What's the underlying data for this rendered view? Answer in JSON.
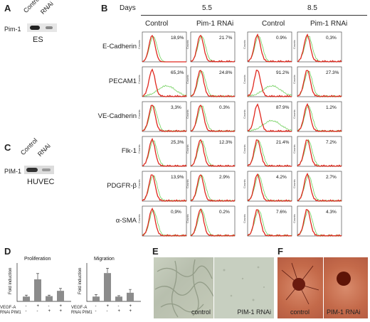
{
  "panel_a": {
    "label": "A",
    "lanes": [
      "Control",
      "RNAi"
    ],
    "protein": "Pim-1",
    "cell": "ES"
  },
  "panel_b": {
    "label": "B",
    "days_label": "Days",
    "days": [
      "5.5",
      "8.5"
    ],
    "groups": [
      "Control",
      "Pim-1 RNAi",
      "Control",
      "Pim-1 RNAi"
    ],
    "rows": [
      {
        "marker": "E-Cadherin",
        "pcts": [
          "18,9%",
          "21.7%",
          "0.9%",
          "0,3%"
        ],
        "green_shift": [
          0,
          0,
          0,
          0
        ]
      },
      {
        "marker": "PECAM1",
        "pcts": [
          "65,3%",
          "24.8%",
          "91.2%",
          "27.3%"
        ],
        "green_shift": [
          1,
          0,
          1,
          0
        ]
      },
      {
        "marker": "VE-Cadherin",
        "pcts": [
          "3,3%",
          "0.3%",
          "87.9%",
          "1.2%"
        ],
        "green_shift": [
          0,
          0,
          1,
          0
        ]
      },
      {
        "marker": "Flk-1",
        "pcts": [
          "25,3%",
          "12.3%",
          "21.4%",
          "7.2%"
        ],
        "green_shift": [
          0,
          0,
          0,
          0
        ]
      },
      {
        "marker": "PDGFR-β",
        "pcts": [
          "13,9%",
          "2.9%",
          "4.2%",
          "2.7%"
        ],
        "green_shift": [
          0,
          0,
          0,
          0
        ]
      },
      {
        "marker": "α-SMA",
        "pcts": [
          "0,9%",
          "0.2%",
          "7.6%",
          "4.3%"
        ],
        "green_shift": [
          0,
          0,
          0,
          0
        ]
      }
    ],
    "axis_label": "Counts",
    "colors": {
      "red": "#e0281e",
      "green": "#6fcf5a"
    }
  },
  "panel_c": {
    "label": "C",
    "lanes": [
      "Control",
      "RNAi"
    ],
    "protein": "PIM-1",
    "cell": "HUVEC"
  },
  "panel_d": {
    "label": "D",
    "ylabel": "Fold induction",
    "row_labels": [
      "VEGF-A",
      "RNAi PIM1"
    ],
    "row_signs": [
      [
        "-",
        "+",
        "-",
        "+"
      ],
      [
        "-",
        "-",
        "+",
        "+"
      ]
    ],
    "charts": [
      {
        "title": "Proliferation",
        "values": [
          1.0,
          4.6,
          1.1,
          2.2
        ],
        "errors": [
          0.3,
          1.2,
          0.2,
          0.5
        ]
      },
      {
        "title": "Migration",
        "values": [
          1.0,
          5.9,
          1.0,
          1.8
        ],
        "errors": [
          0.4,
          1.0,
          0.2,
          0.7
        ]
      }
    ]
  },
  "panel_e": {
    "label": "E",
    "images": [
      "control",
      "PIM-1 RNAi"
    ]
  },
  "panel_f": {
    "label": "F",
    "images": [
      "control",
      "PIM-1 RNAi"
    ]
  }
}
